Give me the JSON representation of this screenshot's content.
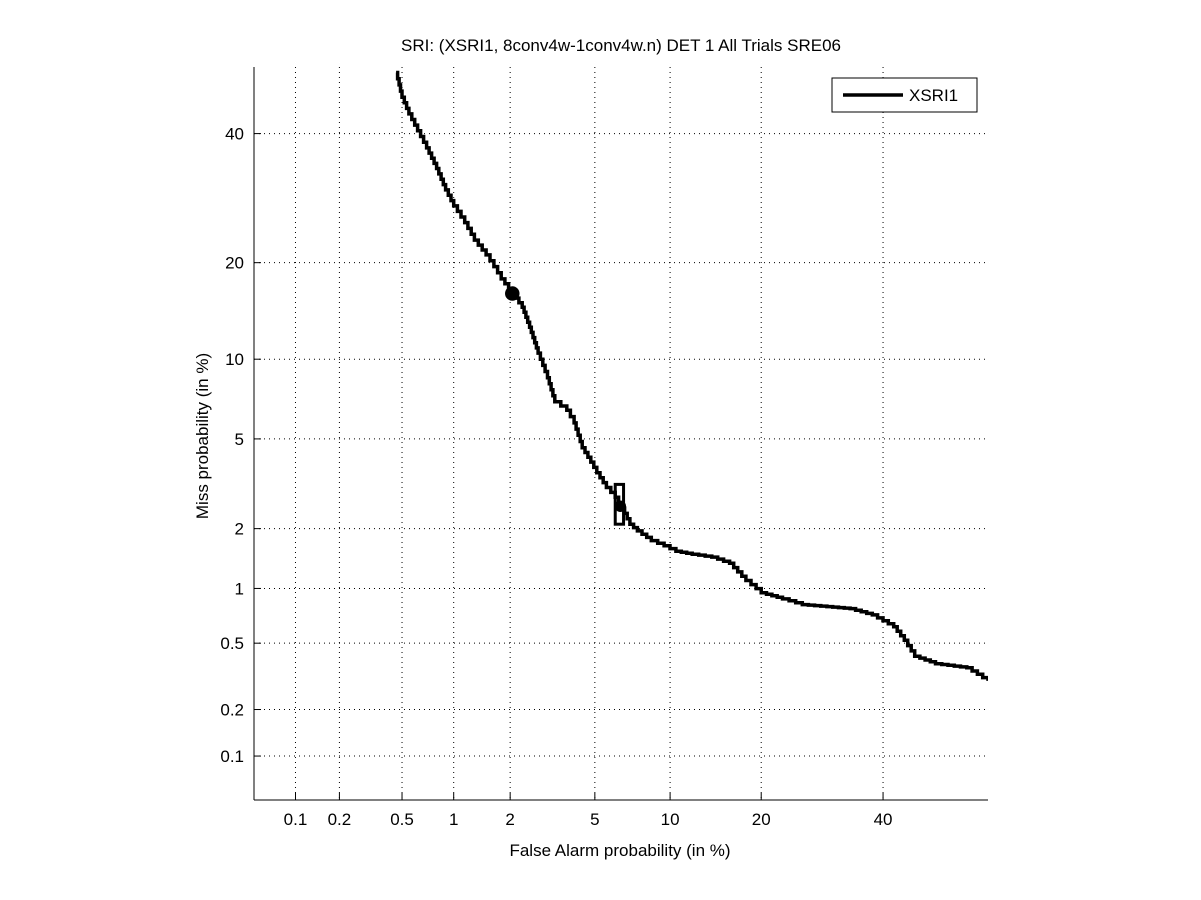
{
  "chart_data": {
    "type": "line",
    "title": "SRI: (XSRI1, 8conv4w-1conv4w.n) DET 1 All Trials SRE06",
    "xlabel": "False Alarm probability (in %)",
    "ylabel": "Miss probability (in %)",
    "scale": "normal-deviate (probit)",
    "xlim": [
      0.05,
      60
    ],
    "ylim": [
      0.05,
      52
    ],
    "x_ticks": [
      0.1,
      0.2,
      0.5,
      1,
      2,
      5,
      10,
      20,
      40
    ],
    "x_tick_labels": [
      "0.1",
      "0.2",
      "0.5",
      "1",
      "2",
      "5",
      "10",
      "20",
      "40"
    ],
    "y_ticks": [
      0.1,
      0.2,
      0.5,
      1,
      2,
      5,
      10,
      20,
      40
    ],
    "y_tick_labels": [
      "0.1",
      "0.2",
      "0.5",
      "1",
      "2",
      "5",
      "10",
      "20",
      "40"
    ],
    "grid": true,
    "legend_position": "top-right",
    "series": [
      {
        "name": "XSRI1",
        "color": "#000000",
        "points": [
          [
            0.46,
            51.0
          ],
          [
            0.5,
            46.5
          ],
          [
            0.55,
            43.5
          ],
          [
            0.62,
            40.5
          ],
          [
            0.7,
            37.5
          ],
          [
            0.8,
            34.0
          ],
          [
            0.9,
            30.5
          ],
          [
            1.0,
            28.0
          ],
          [
            1.15,
            25.5
          ],
          [
            1.3,
            23.0
          ],
          [
            1.5,
            21.0
          ],
          [
            1.65,
            19.5
          ],
          [
            1.8,
            18.0
          ],
          [
            2.05,
            16.3
          ],
          [
            2.3,
            14.8
          ],
          [
            2.5,
            12.8
          ],
          [
            2.75,
            10.5
          ],
          [
            3.05,
            8.6
          ],
          [
            3.3,
            7.0
          ],
          [
            3.75,
            6.5
          ],
          [
            4.05,
            5.8
          ],
          [
            4.4,
            4.6
          ],
          [
            4.8,
            4.0
          ],
          [
            5.1,
            3.6
          ],
          [
            5.6,
            3.1
          ],
          [
            6.1,
            2.8
          ],
          [
            6.5,
            2.5
          ],
          [
            7.0,
            2.1
          ],
          [
            7.5,
            1.95
          ],
          [
            8.5,
            1.75
          ],
          [
            9.5,
            1.65
          ],
          [
            10.5,
            1.55
          ],
          [
            12.0,
            1.5
          ],
          [
            14.0,
            1.45
          ],
          [
            16.0,
            1.35
          ],
          [
            18.0,
            1.1
          ],
          [
            20.0,
            0.95
          ],
          [
            23.0,
            0.88
          ],
          [
            26.0,
            0.82
          ],
          [
            30.0,
            0.8
          ],
          [
            34.0,
            0.78
          ],
          [
            38.0,
            0.72
          ],
          [
            42.0,
            0.62
          ],
          [
            44.0,
            0.52
          ],
          [
            46.0,
            0.42
          ],
          [
            50.0,
            0.38
          ],
          [
            56.0,
            0.36
          ],
          [
            60.0,
            0.3
          ]
        ]
      }
    ],
    "markers": [
      {
        "name": "circle-marker",
        "shape": "circle",
        "x": 2.05,
        "y": 16.3
      },
      {
        "name": "box-marker",
        "shape": "rectangle",
        "x": 6.3,
        "y": 2.55,
        "x_range": [
          6.1,
          6.6
        ],
        "y_range": [
          2.1,
          3.2
        ]
      },
      {
        "name": "box-center-dot",
        "shape": "circle",
        "x": 6.4,
        "y": 2.55
      }
    ]
  }
}
